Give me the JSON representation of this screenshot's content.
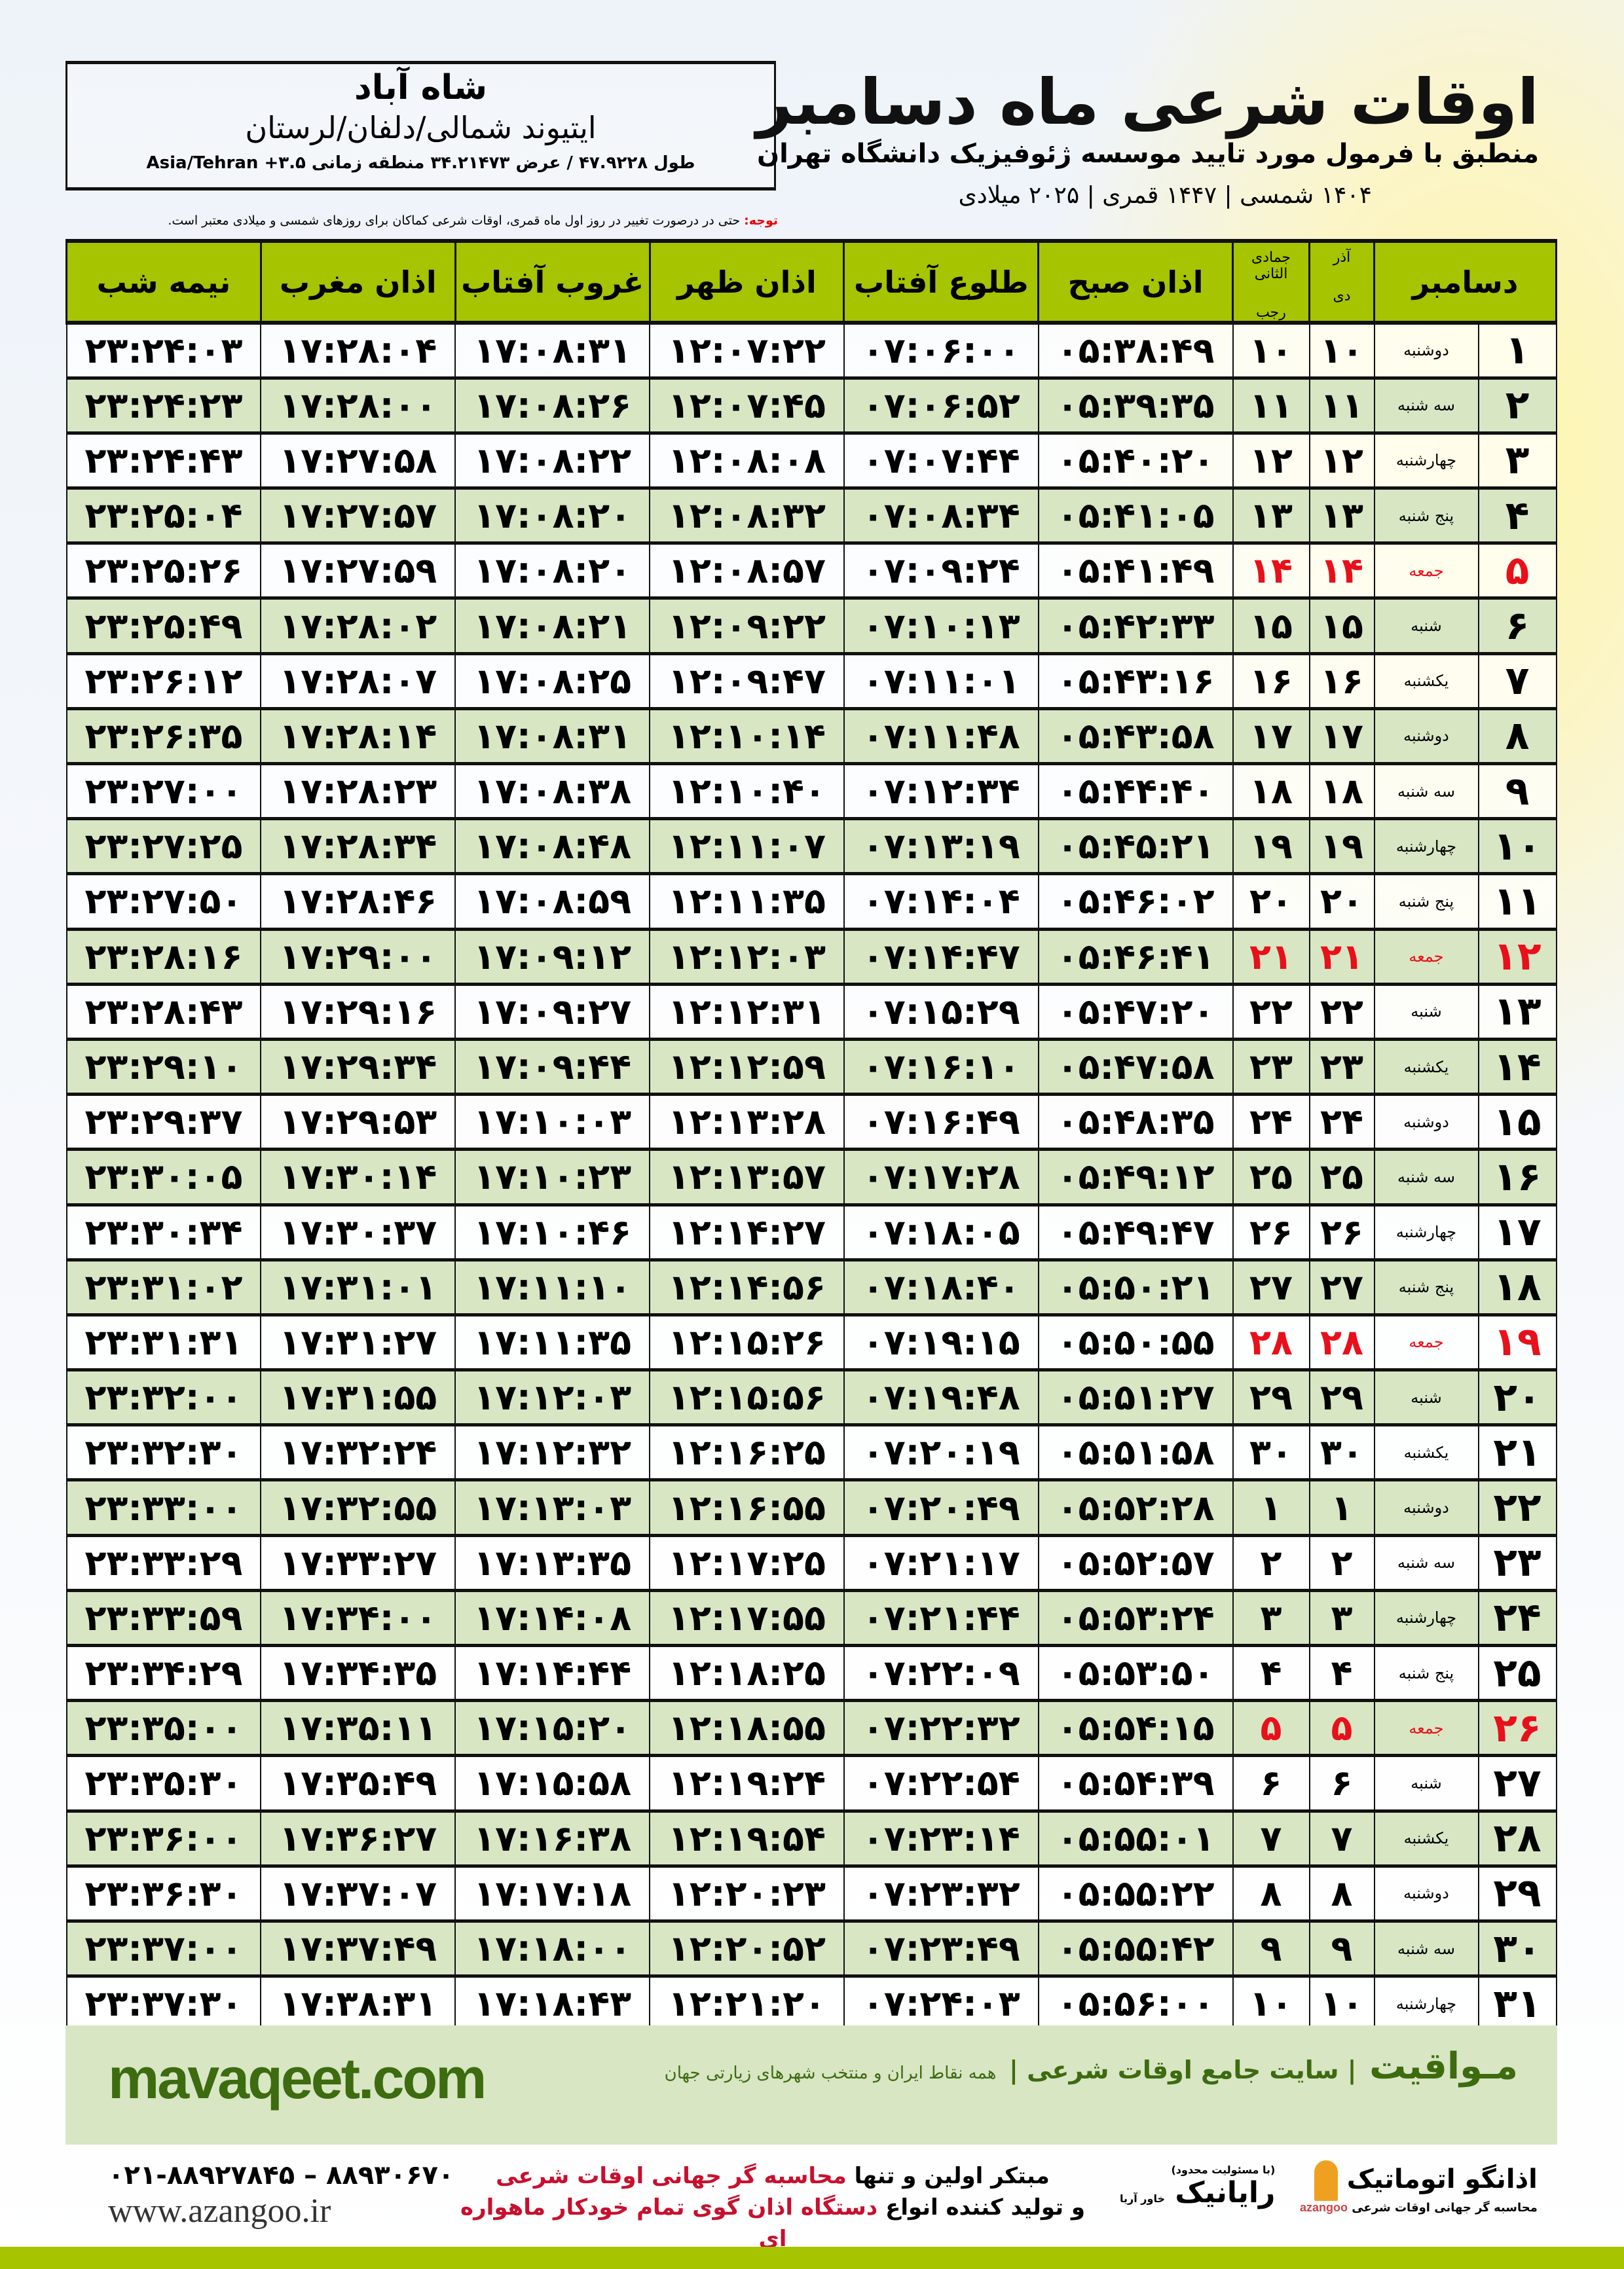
{
  "location": {
    "city": "شاه آباد",
    "region": "ایتیوند شمالی/دلفان/لرستان",
    "coords": "طول ۴۷.۹۲۲۸ / عرض ۳۴.۲۱۴۷۳ منطقه زمانی ۳.۵+ Asia/Tehran"
  },
  "header": {
    "title": "اوقات شرعی ماه دسامبر",
    "subtitle": "منطبق با فرمول مورد تایید موسسه ژئوفیزیک دانشگاه تهران",
    "years": "۱۴۰۴ شمسی | ۱۴۴۷ قمری | ۲۰۲۵ میلادی"
  },
  "note": {
    "label": "توجه:",
    "text": " حتی در درصورت تغییر در روز اول ماه قمری، اوقات شرعی کماکان برای روزهای شمسی و میلادی معتبر است."
  },
  "columns": {
    "month": "دسامبر",
    "persian_top": "آذر",
    "persian_bottom": "دی",
    "lunar_top": "جمادی الثانی",
    "lunar_bottom": "رجب",
    "fajr": "اذان صبح",
    "sunrise": "طلوع آفتاب",
    "dhuhr": "اذان ظهر",
    "sunset": "غروب آفتاب",
    "maghrib": "اذان مغرب",
    "midnight": "نیمه شب"
  },
  "colors": {
    "header_green": "#a6c400",
    "row_green": "#d8e6c4",
    "friday_red": "#e8101a",
    "brand_green": "#3d6b0f"
  },
  "rows": [
    [
      "۱",
      "دوشنبه",
      "۱۰",
      "۱۰",
      "۰۵:۳۸:۴۹",
      "۰۷:۰۶:۰۰",
      "۱۲:۰۷:۲۲",
      "۱۷:۰۸:۳۱",
      "۱۷:۲۸:۰۴",
      "۲۳:۲۴:۰۳"
    ],
    [
      "۲",
      "سه شنبه",
      "۱۱",
      "۱۱",
      "۰۵:۳۹:۳۵",
      "۰۷:۰۶:۵۲",
      "۱۲:۰۷:۴۵",
      "۱۷:۰۸:۲۶",
      "۱۷:۲۸:۰۰",
      "۲۳:۲۴:۲۳"
    ],
    [
      "۳",
      "چهارشنبه",
      "۱۲",
      "۱۲",
      "۰۵:۴۰:۲۰",
      "۰۷:۰۷:۴۴",
      "۱۲:۰۸:۰۸",
      "۱۷:۰۸:۲۲",
      "۱۷:۲۷:۵۸",
      "۲۳:۲۴:۴۳"
    ],
    [
      "۴",
      "پنج شنبه",
      "۱۳",
      "۱۳",
      "۰۵:۴۱:۰۵",
      "۰۷:۰۸:۳۴",
      "۱۲:۰۸:۳۲",
      "۱۷:۰۸:۲۰",
      "۱۷:۲۷:۵۷",
      "۲۳:۲۵:۰۴"
    ],
    [
      "۵",
      "جمعه",
      "۱۴",
      "۱۴",
      "۰۵:۴۱:۴۹",
      "۰۷:۰۹:۲۴",
      "۱۲:۰۸:۵۷",
      "۱۷:۰۸:۲۰",
      "۱۷:۲۷:۵۹",
      "۲۳:۲۵:۲۶"
    ],
    [
      "۶",
      "شنبه",
      "۱۵",
      "۱۵",
      "۰۵:۴۲:۳۳",
      "۰۷:۱۰:۱۳",
      "۱۲:۰۹:۲۲",
      "۱۷:۰۸:۲۱",
      "۱۷:۲۸:۰۲",
      "۲۳:۲۵:۴۹"
    ],
    [
      "۷",
      "یکشنبه",
      "۱۶",
      "۱۶",
      "۰۵:۴۳:۱۶",
      "۰۷:۱۱:۰۱",
      "۱۲:۰۹:۴۷",
      "۱۷:۰۸:۲۵",
      "۱۷:۲۸:۰۷",
      "۲۳:۲۶:۱۲"
    ],
    [
      "۸",
      "دوشنبه",
      "۱۷",
      "۱۷",
      "۰۵:۴۳:۵۸",
      "۰۷:۱۱:۴۸",
      "۱۲:۱۰:۱۴",
      "۱۷:۰۸:۳۱",
      "۱۷:۲۸:۱۴",
      "۲۳:۲۶:۳۵"
    ],
    [
      "۹",
      "سه شنبه",
      "۱۸",
      "۱۸",
      "۰۵:۴۴:۴۰",
      "۰۷:۱۲:۳۴",
      "۱۲:۱۰:۴۰",
      "۱۷:۰۸:۳۸",
      "۱۷:۲۸:۲۳",
      "۲۳:۲۷:۰۰"
    ],
    [
      "۱۰",
      "چهارشنبه",
      "۱۹",
      "۱۹",
      "۰۵:۴۵:۲۱",
      "۰۷:۱۳:۱۹",
      "۱۲:۱۱:۰۷",
      "۱۷:۰۸:۴۸",
      "۱۷:۲۸:۳۴",
      "۲۳:۲۷:۲۵"
    ],
    [
      "۱۱",
      "پنج شنبه",
      "۲۰",
      "۲۰",
      "۰۵:۴۶:۰۲",
      "۰۷:۱۴:۰۴",
      "۱۲:۱۱:۳۵",
      "۱۷:۰۸:۵۹",
      "۱۷:۲۸:۴۶",
      "۲۳:۲۷:۵۰"
    ],
    [
      "۱۲",
      "جمعه",
      "۲۱",
      "۲۱",
      "۰۵:۴۶:۴۱",
      "۰۷:۱۴:۴۷",
      "۱۲:۱۲:۰۳",
      "۱۷:۰۹:۱۲",
      "۱۷:۲۹:۰۰",
      "۲۳:۲۸:۱۶"
    ],
    [
      "۱۳",
      "شنبه",
      "۲۲",
      "۲۲",
      "۰۵:۴۷:۲۰",
      "۰۷:۱۵:۲۹",
      "۱۲:۱۲:۳۱",
      "۱۷:۰۹:۲۷",
      "۱۷:۲۹:۱۶",
      "۲۳:۲۸:۴۳"
    ],
    [
      "۱۴",
      "یکشنبه",
      "۲۳",
      "۲۳",
      "۰۵:۴۷:۵۸",
      "۰۷:۱۶:۱۰",
      "۱۲:۱۲:۵۹",
      "۱۷:۰۹:۴۴",
      "۱۷:۲۹:۳۴",
      "۲۳:۲۹:۱۰"
    ],
    [
      "۱۵",
      "دوشنبه",
      "۲۴",
      "۲۴",
      "۰۵:۴۸:۳۵",
      "۰۷:۱۶:۴۹",
      "۱۲:۱۳:۲۸",
      "۱۷:۱۰:۰۳",
      "۱۷:۲۹:۵۳",
      "۲۳:۲۹:۳۷"
    ],
    [
      "۱۶",
      "سه شنبه",
      "۲۵",
      "۲۵",
      "۰۵:۴۹:۱۲",
      "۰۷:۱۷:۲۸",
      "۱۲:۱۳:۵۷",
      "۱۷:۱۰:۲۳",
      "۱۷:۳۰:۱۴",
      "۲۳:۳۰:۰۵"
    ],
    [
      "۱۷",
      "چهارشنبه",
      "۲۶",
      "۲۶",
      "۰۵:۴۹:۴۷",
      "۰۷:۱۸:۰۵",
      "۱۲:۱۴:۲۷",
      "۱۷:۱۰:۴۶",
      "۱۷:۳۰:۳۷",
      "۲۳:۳۰:۳۴"
    ],
    [
      "۱۸",
      "پنج شنبه",
      "۲۷",
      "۲۷",
      "۰۵:۵۰:۲۱",
      "۰۷:۱۸:۴۰",
      "۱۲:۱۴:۵۶",
      "۱۷:۱۱:۱۰",
      "۱۷:۳۱:۰۱",
      "۲۳:۳۱:۰۲"
    ],
    [
      "۱۹",
      "جمعه",
      "۲۸",
      "۲۸",
      "۰۵:۵۰:۵۵",
      "۰۷:۱۹:۱۵",
      "۱۲:۱۵:۲۶",
      "۱۷:۱۱:۳۵",
      "۱۷:۳۱:۲۷",
      "۲۳:۳۱:۳۱"
    ],
    [
      "۲۰",
      "شنبه",
      "۲۹",
      "۲۹",
      "۰۵:۵۱:۲۷",
      "۰۷:۱۹:۴۸",
      "۱۲:۱۵:۵۶",
      "۱۷:۱۲:۰۳",
      "۱۷:۳۱:۵۵",
      "۲۳:۳۲:۰۰"
    ],
    [
      "۲۱",
      "یکشنبه",
      "۳۰",
      "۳۰",
      "۰۵:۵۱:۵۸",
      "۰۷:۲۰:۱۹",
      "۱۲:۱۶:۲۵",
      "۱۷:۱۲:۳۲",
      "۱۷:۳۲:۲۴",
      "۲۳:۳۲:۳۰"
    ],
    [
      "۲۲",
      "دوشنبه",
      "۱",
      "۱",
      "۰۵:۵۲:۲۸",
      "۰۷:۲۰:۴۹",
      "۱۲:۱۶:۵۵",
      "۱۷:۱۳:۰۳",
      "۱۷:۳۲:۵۵",
      "۲۳:۳۳:۰۰"
    ],
    [
      "۲۳",
      "سه شنبه",
      "۲",
      "۲",
      "۰۵:۵۲:۵۷",
      "۰۷:۲۱:۱۷",
      "۱۲:۱۷:۲۵",
      "۱۷:۱۳:۳۵",
      "۱۷:۳۳:۲۷",
      "۲۳:۳۳:۲۹"
    ],
    [
      "۲۴",
      "چهارشنبه",
      "۳",
      "۳",
      "۰۵:۵۳:۲۴",
      "۰۷:۲۱:۴۴",
      "۱۲:۱۷:۵۵",
      "۱۷:۱۴:۰۸",
      "۱۷:۳۴:۰۰",
      "۲۳:۳۳:۵۹"
    ],
    [
      "۲۵",
      "پنج شنبه",
      "۴",
      "۴",
      "۰۵:۵۳:۵۰",
      "۰۷:۲۲:۰۹",
      "۱۲:۱۸:۲۵",
      "۱۷:۱۴:۴۴",
      "۱۷:۳۴:۳۵",
      "۲۳:۳۴:۲۹"
    ],
    [
      "۲۶",
      "جمعه",
      "۵",
      "۵",
      "۰۵:۵۴:۱۵",
      "۰۷:۲۲:۳۲",
      "۱۲:۱۸:۵۵",
      "۱۷:۱۵:۲۰",
      "۱۷:۳۵:۱۱",
      "۲۳:۳۵:۰۰"
    ],
    [
      "۲۷",
      "شنبه",
      "۶",
      "۶",
      "۰۵:۵۴:۳۹",
      "۰۷:۲۲:۵۴",
      "۱۲:۱۹:۲۴",
      "۱۷:۱۵:۵۸",
      "۱۷:۳۵:۴۹",
      "۲۳:۳۵:۳۰"
    ],
    [
      "۲۸",
      "یکشنبه",
      "۷",
      "۷",
      "۰۵:۵۵:۰۱",
      "۰۷:۲۳:۱۴",
      "۱۲:۱۹:۵۴",
      "۱۷:۱۶:۳۸",
      "۱۷:۳۶:۲۷",
      "۲۳:۳۶:۰۰"
    ],
    [
      "۲۹",
      "دوشنبه",
      "۸",
      "۸",
      "۰۵:۵۵:۲۲",
      "۰۷:۲۳:۳۲",
      "۱۲:۲۰:۲۳",
      "۱۷:۱۷:۱۸",
      "۱۷:۳۷:۰۷",
      "۲۳:۳۶:۳۰"
    ],
    [
      "۳۰",
      "سه شنبه",
      "۹",
      "۹",
      "۰۵:۵۵:۴۲",
      "۰۷:۲۳:۴۹",
      "۱۲:۲۰:۵۲",
      "۱۷:۱۸:۰۰",
      "۱۷:۳۷:۴۹",
      "۲۳:۳۷:۰۰"
    ],
    [
      "۳۱",
      "چهارشنبه",
      "۱۰",
      "۱۰",
      "۰۵:۵۶:۰۰",
      "۰۷:۲۴:۰۳",
      "۱۲:۲۱:۲۰",
      "۱۷:۱۸:۴۳",
      "۱۷:۳۸:۳۱",
      "۲۳:۳۷:۳۰"
    ]
  ],
  "friday_label": "جمعه",
  "footer": {
    "site": "mavaqeet.com",
    "brand": "مـواقیت",
    "slogan": "| سایت جامع اوقات شرعی |",
    "slogan_small": "همه نقاط ایران و منتخب شهرهای زیارتی جهان",
    "phone": "۰۲۱-۸۸۹۲۷۸۴۵ – ۸۸۹۳۰۶۷۰",
    "web": "www.azangoo.ir",
    "promo1a": "مبتکر اولین و تنها ",
    "promo1b": "محاسبه گر جهانی اوقات شرعی",
    "promo2a": "و تولید کننده انواع ",
    "promo2b": "دستگاه اذان گوی تمام خودکار ماهواره ای",
    "rayanik": "رایانیک",
    "rayanik_sub": "(با مسئولیت محدود)",
    "rayanik_side": "خاور آریا",
    "azangoo": "اذانگو اتوماتیک",
    "azangoo_sub": "محاسبه گر جهانی اوقات شرعی",
    "azangoo_latin": "azangoo"
  }
}
